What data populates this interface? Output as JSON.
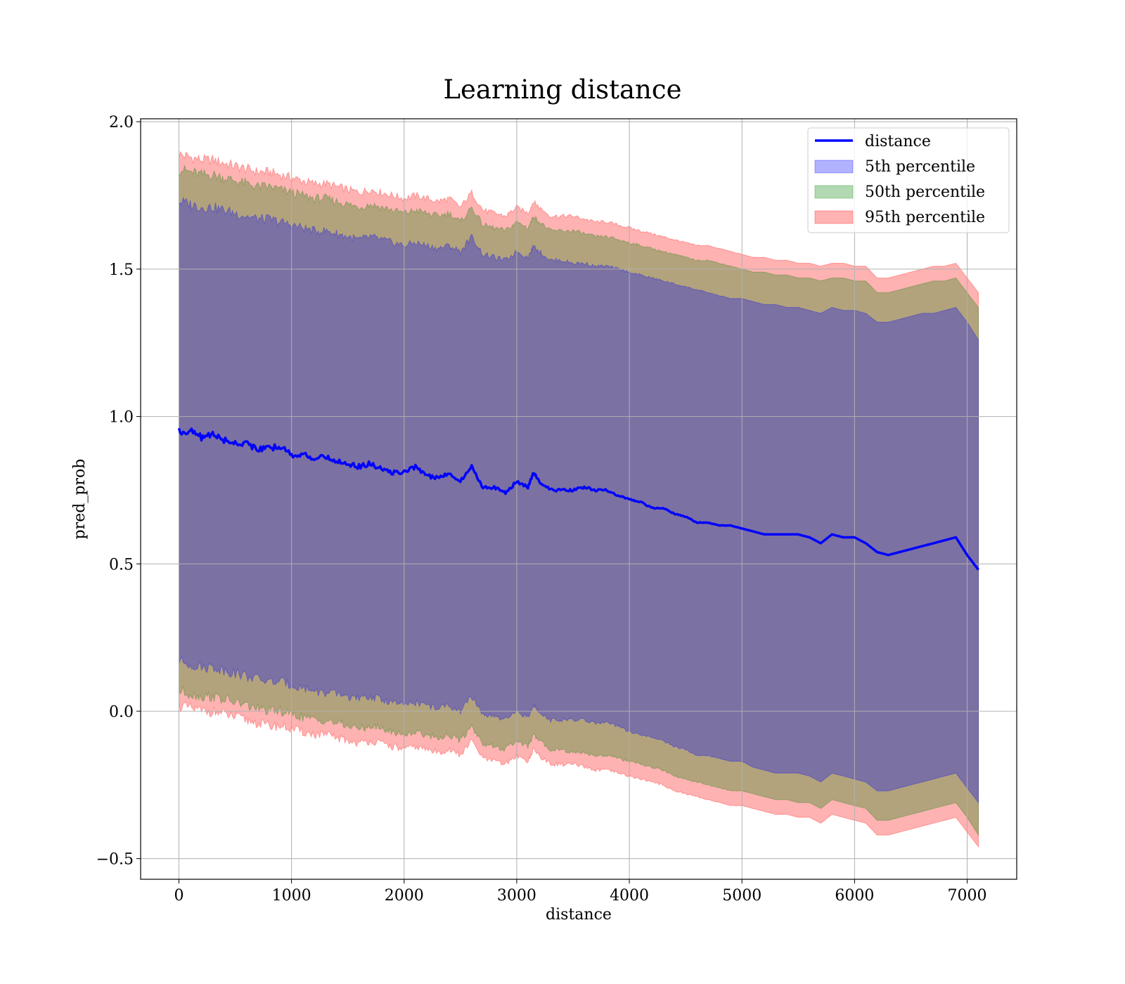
{
  "chart_data": {
    "type": "line",
    "title": "Learning distance",
    "xlabel": "distance",
    "ylabel": "pred_prob",
    "xlim": [
      -340,
      7440
    ],
    "ylim": [
      -0.57,
      2.01
    ],
    "xticks": [
      0,
      1000,
      2000,
      3000,
      4000,
      5000,
      6000,
      7000
    ],
    "xtick_labels": [
      "0",
      "1000",
      "2000",
      "3000",
      "4000",
      "5000",
      "6000",
      "7000"
    ],
    "yticks": [
      -0.5,
      0.0,
      0.5,
      1.0,
      1.5,
      2.0
    ],
    "ytick_labels": [
      "−0.5",
      "0.0",
      "0.5",
      "1.0",
      "1.5",
      "2.0"
    ],
    "grid": true,
    "legend_position": "upper-right",
    "x": [
      0,
      100,
      200,
      300,
      400,
      500,
      600,
      700,
      800,
      900,
      1000,
      1100,
      1200,
      1300,
      1400,
      1500,
      1600,
      1700,
      1800,
      1900,
      2000,
      2100,
      2200,
      2300,
      2400,
      2500,
      2600,
      2700,
      2800,
      2900,
      3000,
      3100,
      3150,
      3200,
      3300,
      3400,
      3500,
      3600,
      3700,
      3800,
      3900,
      4000,
      4100,
      4200,
      4300,
      4400,
      4500,
      4600,
      4700,
      4800,
      4900,
      5000,
      5100,
      5200,
      5300,
      5400,
      5500,
      5600,
      5700,
      5800,
      5900,
      6000,
      6100,
      6200,
      6300,
      6400,
      6500,
      6600,
      6700,
      6800,
      6900,
      7000,
      7100
    ],
    "series": [
      {
        "name": "distance",
        "kind": "line",
        "color": "#0000ff",
        "values": [
          0.95,
          0.95,
          0.93,
          0.94,
          0.92,
          0.91,
          0.91,
          0.89,
          0.89,
          0.9,
          0.87,
          0.87,
          0.86,
          0.86,
          0.85,
          0.84,
          0.83,
          0.84,
          0.82,
          0.81,
          0.81,
          0.83,
          0.8,
          0.79,
          0.81,
          0.78,
          0.83,
          0.76,
          0.76,
          0.74,
          0.78,
          0.76,
          0.81,
          0.78,
          0.75,
          0.75,
          0.75,
          0.76,
          0.75,
          0.75,
          0.73,
          0.72,
          0.71,
          0.69,
          0.69,
          0.67,
          0.66,
          0.64,
          0.64,
          0.63,
          0.63,
          0.62,
          0.61,
          0.6,
          0.6,
          0.6,
          0.6,
          0.59,
          0.57,
          0.6,
          0.59,
          0.59,
          0.57,
          0.54,
          0.53,
          0.54,
          0.55,
          0.56,
          0.57,
          0.58,
          0.59,
          0.53,
          0.48
        ]
      },
      {
        "name": "5th percentile",
        "kind": "band",
        "color": "#0000ff",
        "opacity": 0.3,
        "lower": [
          0.17,
          0.16,
          0.15,
          0.15,
          0.14,
          0.13,
          0.12,
          0.11,
          0.1,
          0.1,
          0.09,
          0.08,
          0.07,
          0.06,
          0.06,
          0.05,
          0.04,
          0.05,
          0.04,
          0.03,
          0.02,
          0.03,
          0.02,
          0.01,
          0.02,
          0.0,
          0.05,
          -0.01,
          -0.02,
          -0.03,
          0.0,
          -0.02,
          0.02,
          0.0,
          -0.03,
          -0.03,
          -0.03,
          -0.03,
          -0.04,
          -0.04,
          -0.05,
          -0.07,
          -0.08,
          -0.09,
          -0.1,
          -0.12,
          -0.13,
          -0.15,
          -0.15,
          -0.16,
          -0.17,
          -0.17,
          -0.19,
          -0.2,
          -0.21,
          -0.21,
          -0.21,
          -0.22,
          -0.24,
          -0.21,
          -0.22,
          -0.23,
          -0.24,
          -0.27,
          -0.27,
          -0.26,
          -0.25,
          -0.24,
          -0.23,
          -0.22,
          -0.21,
          -0.26,
          -0.31
        ],
        "upper": [
          1.73,
          1.72,
          1.71,
          1.71,
          1.7,
          1.69,
          1.68,
          1.67,
          1.67,
          1.66,
          1.65,
          1.64,
          1.63,
          1.63,
          1.62,
          1.61,
          1.6,
          1.61,
          1.6,
          1.59,
          1.58,
          1.59,
          1.58,
          1.57,
          1.58,
          1.56,
          1.61,
          1.55,
          1.54,
          1.53,
          1.56,
          1.54,
          1.58,
          1.56,
          1.53,
          1.53,
          1.52,
          1.52,
          1.51,
          1.51,
          1.5,
          1.49,
          1.48,
          1.47,
          1.46,
          1.45,
          1.44,
          1.43,
          1.42,
          1.41,
          1.4,
          1.4,
          1.39,
          1.38,
          1.38,
          1.37,
          1.37,
          1.36,
          1.35,
          1.37,
          1.36,
          1.36,
          1.35,
          1.32,
          1.32,
          1.33,
          1.34,
          1.35,
          1.35,
          1.36,
          1.37,
          1.32,
          1.26
        ]
      },
      {
        "name": "50th percentile",
        "kind": "band",
        "color": "#008000",
        "opacity": 0.3,
        "lower": [
          0.07,
          0.06,
          0.05,
          0.05,
          0.04,
          0.03,
          0.02,
          0.01,
          0.0,
          0.0,
          -0.01,
          -0.02,
          -0.03,
          -0.03,
          -0.04,
          -0.05,
          -0.06,
          -0.05,
          -0.06,
          -0.07,
          -0.08,
          -0.07,
          -0.08,
          -0.09,
          -0.08,
          -0.1,
          -0.05,
          -0.11,
          -0.12,
          -0.13,
          -0.1,
          -0.12,
          -0.08,
          -0.1,
          -0.13,
          -0.13,
          -0.14,
          -0.14,
          -0.15,
          -0.15,
          -0.16,
          -0.17,
          -0.18,
          -0.19,
          -0.2,
          -0.22,
          -0.23,
          -0.24,
          -0.25,
          -0.26,
          -0.27,
          -0.27,
          -0.28,
          -0.29,
          -0.3,
          -0.3,
          -0.31,
          -0.31,
          -0.33,
          -0.3,
          -0.31,
          -0.32,
          -0.33,
          -0.37,
          -0.37,
          -0.36,
          -0.35,
          -0.34,
          -0.33,
          -0.32,
          -0.31,
          -0.36,
          -0.42
        ],
        "upper": [
          1.84,
          1.83,
          1.82,
          1.82,
          1.81,
          1.8,
          1.79,
          1.78,
          1.78,
          1.77,
          1.76,
          1.75,
          1.74,
          1.74,
          1.73,
          1.72,
          1.71,
          1.72,
          1.71,
          1.7,
          1.69,
          1.7,
          1.69,
          1.68,
          1.69,
          1.66,
          1.71,
          1.65,
          1.64,
          1.63,
          1.66,
          1.64,
          1.68,
          1.66,
          1.63,
          1.63,
          1.63,
          1.62,
          1.61,
          1.61,
          1.6,
          1.59,
          1.58,
          1.57,
          1.56,
          1.55,
          1.54,
          1.53,
          1.53,
          1.52,
          1.51,
          1.5,
          1.49,
          1.49,
          1.48,
          1.48,
          1.47,
          1.47,
          1.46,
          1.47,
          1.47,
          1.46,
          1.46,
          1.42,
          1.42,
          1.43,
          1.44,
          1.45,
          1.46,
          1.46,
          1.47,
          1.42,
          1.37
        ]
      },
      {
        "name": "95th percentile",
        "kind": "band",
        "color": "#ff0000",
        "opacity": 0.3,
        "lower": [
          0.02,
          0.01,
          0.0,
          0.0,
          -0.01,
          -0.02,
          -0.03,
          -0.04,
          -0.05,
          -0.05,
          -0.06,
          -0.07,
          -0.08,
          -0.08,
          -0.09,
          -0.1,
          -0.11,
          -0.1,
          -0.11,
          -0.12,
          -0.13,
          -0.12,
          -0.13,
          -0.14,
          -0.13,
          -0.15,
          -0.1,
          -0.16,
          -0.17,
          -0.18,
          -0.15,
          -0.17,
          -0.13,
          -0.15,
          -0.18,
          -0.18,
          -0.18,
          -0.19,
          -0.2,
          -0.2,
          -0.21,
          -0.22,
          -0.23,
          -0.24,
          -0.25,
          -0.27,
          -0.28,
          -0.29,
          -0.3,
          -0.31,
          -0.32,
          -0.32,
          -0.33,
          -0.34,
          -0.35,
          -0.35,
          -0.36,
          -0.36,
          -0.38,
          -0.35,
          -0.36,
          -0.37,
          -0.38,
          -0.42,
          -0.42,
          -0.41,
          -0.4,
          -0.39,
          -0.38,
          -0.37,
          -0.36,
          -0.41,
          -0.46
        ],
        "upper": [
          1.89,
          1.88,
          1.87,
          1.87,
          1.86,
          1.85,
          1.84,
          1.83,
          1.83,
          1.82,
          1.81,
          1.8,
          1.79,
          1.79,
          1.78,
          1.77,
          1.76,
          1.77,
          1.76,
          1.75,
          1.74,
          1.75,
          1.74,
          1.73,
          1.74,
          1.71,
          1.76,
          1.7,
          1.69,
          1.68,
          1.71,
          1.69,
          1.73,
          1.71,
          1.68,
          1.68,
          1.68,
          1.67,
          1.66,
          1.66,
          1.65,
          1.64,
          1.63,
          1.62,
          1.61,
          1.6,
          1.59,
          1.58,
          1.58,
          1.57,
          1.56,
          1.55,
          1.54,
          1.54,
          1.53,
          1.53,
          1.52,
          1.52,
          1.51,
          1.52,
          1.52,
          1.51,
          1.51,
          1.47,
          1.47,
          1.48,
          1.49,
          1.5,
          1.51,
          1.51,
          1.52,
          1.47,
          1.42
        ]
      }
    ]
  }
}
